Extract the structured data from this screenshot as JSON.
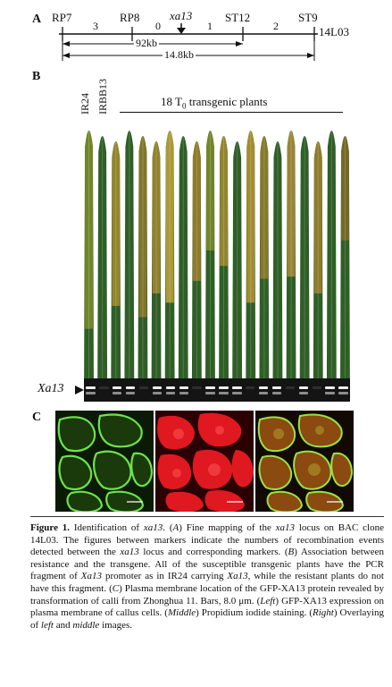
{
  "panel_a": {
    "letter": "A",
    "markers": [
      "RP7",
      "RP8",
      "xa13",
      "ST12",
      "ST9",
      "14L03"
    ],
    "recomb_counts": [
      "3",
      "0",
      "1",
      "2"
    ],
    "distance_1": "92kb",
    "distance_2": "14.8kb"
  },
  "panel_b": {
    "letter": "B",
    "ctrl_1": "IR24",
    "ctrl_2": "IRBB13",
    "group_label_pre": "18 T",
    "group_label_sub": "0",
    "group_label_post": " transgenic plants",
    "gel_label": "Xa13",
    "leaves": [
      {
        "color": "#7a8a2a",
        "lesion": 0.8
      },
      {
        "color": "#3f6b2c",
        "lesion": 0.05
      },
      {
        "color": "#a08a2e",
        "lesion": 0.7
      },
      {
        "color": "#3d6a30",
        "lesion": 0.05
      },
      {
        "color": "#8a7a2a",
        "lesion": 0.75
      },
      {
        "color": "#9b8630",
        "lesion": 0.65
      },
      {
        "color": "#b8a03a",
        "lesion": 0.7
      },
      {
        "color": "#3a6a2e",
        "lesion": 0.05
      },
      {
        "color": "#9a7e2a",
        "lesion": 0.6
      },
      {
        "color": "#7a8a2e",
        "lesion": 0.5
      },
      {
        "color": "#9e8a30",
        "lesion": 0.55
      },
      {
        "color": "#3a662c",
        "lesion": 0.05
      },
      {
        "color": "#b09234",
        "lesion": 0.7
      },
      {
        "color": "#8f7c2c",
        "lesion": 0.6
      },
      {
        "color": "#3c6a2e",
        "lesion": 0.05
      },
      {
        "color": "#a6883a",
        "lesion": 0.6
      },
      {
        "color": "#3f6d30",
        "lesion": 0.05
      },
      {
        "color": "#9a802e",
        "lesion": 0.65
      },
      {
        "color": "#3d6a2f",
        "lesion": 0.05
      },
      {
        "color": "#7c6a28",
        "lesion": 0.45
      }
    ],
    "gel_bands": [
      1,
      0,
      1,
      1,
      0,
      1,
      1,
      1,
      0,
      1,
      1,
      1,
      0,
      1,
      1,
      0,
      1,
      0,
      1,
      1
    ]
  },
  "panel_c": {
    "letter": "C"
  },
  "caption": {
    "fig_label": "Figure 1.",
    "seg1": " Identification of ",
    "g1": "xa13",
    "seg2": ". (",
    "l1": "A",
    "seg3": ") Fine mapping of the ",
    "g2": "xa13",
    "seg4": " locus on BAC clone 14L03. The figures between markers indicate the numbers of recombination events detected between the ",
    "g3": "xa13",
    "seg5": " locus and corresponding markers. (",
    "l2": "B",
    "seg6": ") Association between resistance and the transgene. All of the susceptible transgenic plants have the PCR fragment of ",
    "g4": "Xa13",
    "seg7": " promoter as in IR24 carrying ",
    "g5": "Xa13",
    "seg8": ", while the resistant plants do not have this fragment. (",
    "l3": "C",
    "seg9": ") Plasma membrane location of the GFP-XA13 protein revealed by transformation of calli from Zhonghua 11. Bars, 8.0 μm. (",
    "l4": "Left",
    "seg10": ") GFP-XA13 expression on plasma membrane of callus cells. (",
    "l5": "Middle",
    "seg11": ") Propidium iodide staining. (",
    "l6": "Right",
    "seg12": ") Overlaying of ",
    "l7": "left",
    "seg13": " and ",
    "l8": "middle",
    "seg14": " images."
  }
}
